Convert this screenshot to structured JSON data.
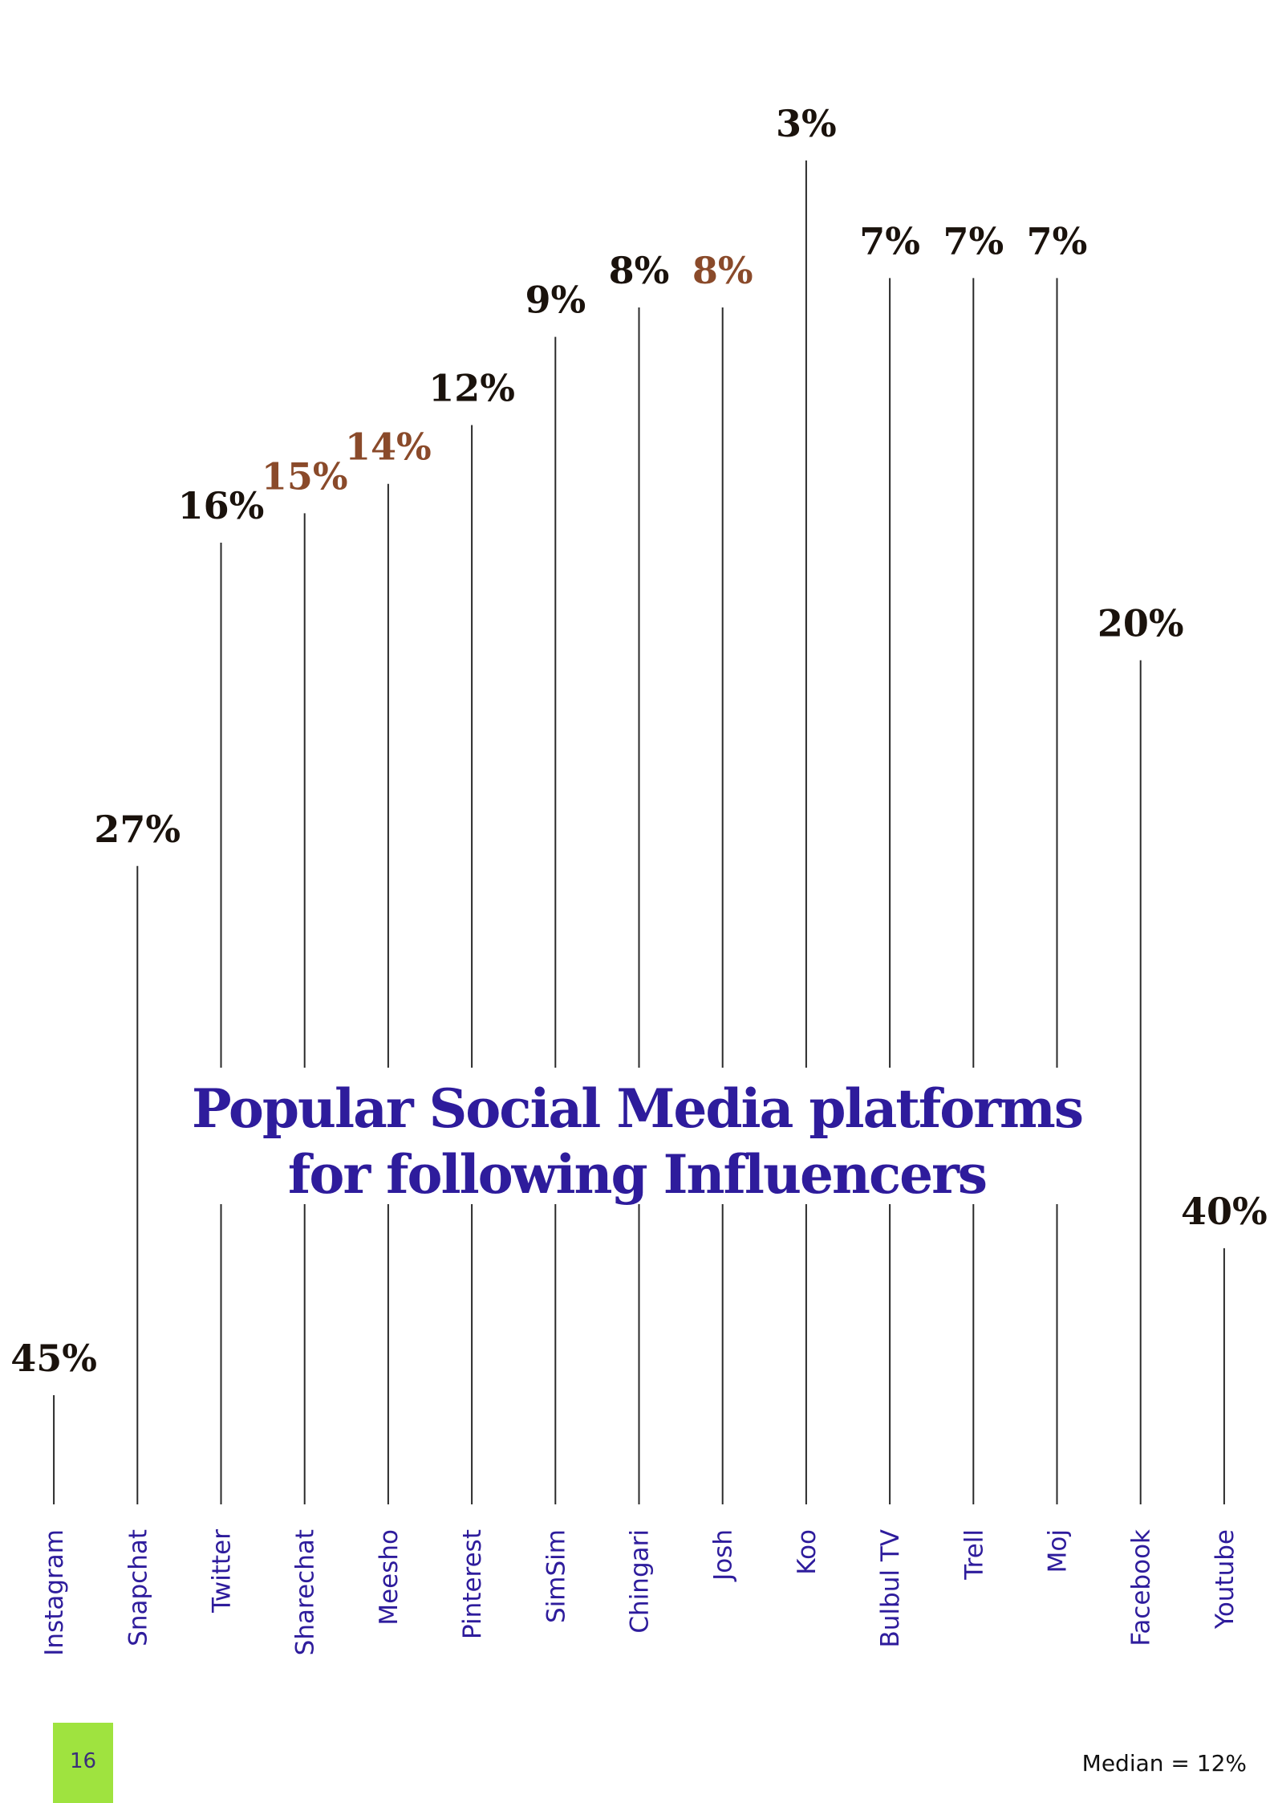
{
  "page": {
    "number": "16",
    "number_bg": "#9fe33f",
    "median_label": "Median = 12%"
  },
  "colors": {
    "title": "#2e1c9c",
    "category_label": "#2e1c9c",
    "value_label": "#1a120c",
    "value_label_alt": "#8a4a2a",
    "guide_line": "#2a2a2a",
    "photo_dark": "#2a1c16",
    "photo_curtain": "#3a2418",
    "photo_light": "#6e4324"
  },
  "chart_data": {
    "type": "bar",
    "orientation": "vertical-inverted",
    "title": "Popular Social Media platforms for following Influencers",
    "title_lines": [
      "Popular Social Media platforms",
      "for following Influencers"
    ],
    "categories": [
      "Instagram",
      "Snapchat",
      "Twitter",
      "Sharechat",
      "Meesho",
      "Pinterest",
      "SimSim",
      "Chingari",
      "Josh",
      "Koo",
      "Bulbul TV",
      "Trell",
      "Moj",
      "Facebook",
      "Youtube"
    ],
    "values": [
      45,
      27,
      16,
      15,
      14,
      12,
      9,
      8,
      8,
      3,
      7,
      7,
      7,
      20,
      40
    ],
    "value_labels": [
      "45%",
      "27%",
      "16%",
      "15%",
      "14%",
      "12%",
      "9%",
      "8%",
      "8%",
      "3%",
      "7%",
      "7%",
      "7%",
      "20%",
      "40%"
    ],
    "unit": "%",
    "median": 12,
    "bar_fill": "photograph",
    "ylim": [
      0,
      45
    ],
    "grid": false,
    "legend": "none"
  }
}
